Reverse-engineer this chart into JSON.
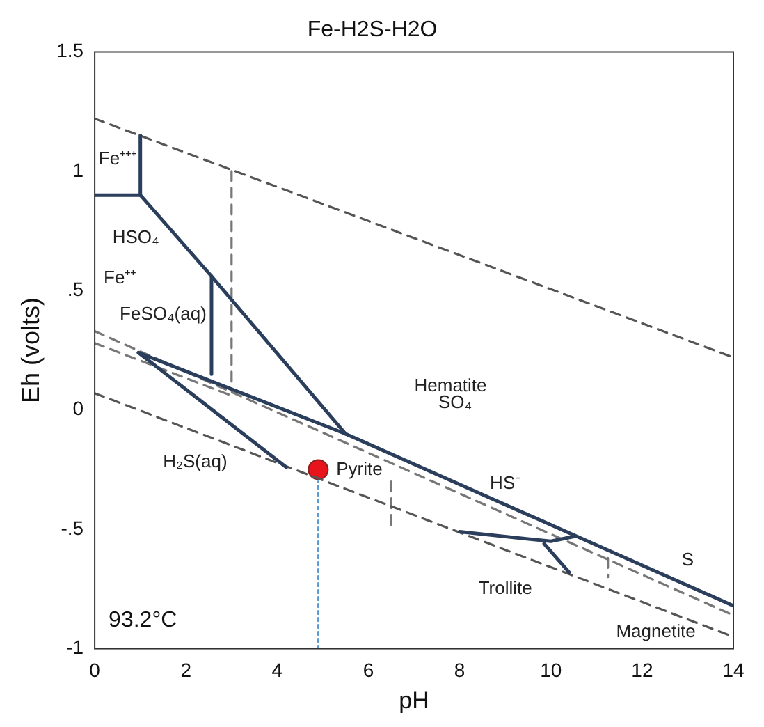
{
  "chart_data": {
    "type": "line",
    "title": "Fe-H2S-H2O",
    "xlabel": "pH",
    "ylabel": "Eh (volts)",
    "xlim": [
      0,
      14
    ],
    "xticks": [
      0,
      2,
      4,
      6,
      8,
      10,
      12,
      14
    ],
    "ylim": [
      -1,
      1.5
    ],
    "yticks": [
      -1,
      {
        "value": -0.5,
        "label": "-.5"
      },
      0,
      {
        "value": 0.5,
        "label": ".5"
      },
      1,
      1.5
    ],
    "grid": false,
    "legend": false,
    "series": [
      {
        "color": "#2b3e5c",
        "line_style": "solid",
        "marker": "none",
        "x": [
          0,
          1,
          1
        ],
        "values": [
          0.9,
          0.9,
          1.15
        ]
      },
      {
        "color": "#2b3e5c",
        "line_style": "solid",
        "marker": "none",
        "x": [
          1,
          2.56,
          5.5
        ],
        "values": [
          0.9,
          0.56,
          -0.1
        ]
      },
      {
        "color": "#2b3e5c",
        "line_style": "solid",
        "marker": "none",
        "x": [
          2.56,
          2.56
        ],
        "values": [
          0.56,
          0.15
        ]
      },
      {
        "color": "#2b3e5c",
        "line_style": "solid",
        "marker": "none",
        "x": [
          0.96,
          5.5,
          14
        ],
        "values": [
          0.24,
          -0.1,
          -0.82
        ]
      },
      {
        "color": "#2b3e5c",
        "line_style": "solid",
        "marker": "none",
        "x": [
          0.96,
          4.2
        ],
        "values": [
          0.24,
          -0.24
        ]
      },
      {
        "color": "#2b3e5c",
        "line_style": "solid",
        "marker": "none",
        "x": [
          8,
          10,
          10.5
        ],
        "values": [
          -0.51,
          -0.55,
          -0.53
        ]
      },
      {
        "color": "#2b3e5c",
        "line_style": "solid",
        "marker": "none",
        "x": [
          9.85,
          10.4
        ],
        "values": [
          -0.56,
          -0.68
        ]
      },
      {
        "color": "#555555",
        "line_style": "dashed",
        "marker": "none",
        "x": [
          0,
          14
        ],
        "values": [
          1.22,
          0.22
        ]
      },
      {
        "color": "#555555",
        "line_style": "dashed",
        "marker": "none",
        "x": [
          0,
          14
        ],
        "values": [
          0.07,
          -0.95
        ]
      },
      {
        "color": "#777777",
        "line_style": "dashed",
        "marker": "none",
        "x": [
          0,
          14
        ],
        "values": [
          0.33,
          -0.86
        ]
      },
      {
        "color": "#777777",
        "line_style": "dashed",
        "marker": "none",
        "x": [
          0,
          3
        ],
        "values": [
          0.28,
          0.06
        ]
      },
      {
        "color": "#777777",
        "line_style": "dashed",
        "marker": "none",
        "x": [
          3,
          3
        ],
        "values": [
          1.0,
          0.08
        ]
      },
      {
        "color": "#777777",
        "line_style": "dashed",
        "marker": "none",
        "x": [
          6.5,
          6.5
        ],
        "values": [
          -0.3,
          -0.5
        ]
      },
      {
        "color": "#777777",
        "line_style": "dashed",
        "marker": "none",
        "x": [
          11.25,
          11.25
        ],
        "values": [
          -0.62,
          -0.7
        ]
      },
      {
        "color": "#5b9bd5",
        "line_style": "dotted",
        "marker": "none",
        "x": [
          4.9,
          4.9
        ],
        "values": [
          -1,
          -0.3
        ]
      },
      {
        "type": "scatter",
        "color": "#e8141c",
        "marker": "circle",
        "x": [
          4.9
        ],
        "values": [
          -0.25
        ]
      }
    ],
    "annotations": [
      "Fe⁺⁺⁺",
      "HSO₄",
      "Fe⁺⁺",
      "FeSO₄(aq)",
      "Hematite",
      "SO₄",
      "H₂S(aq)",
      "Pyrite",
      "HS⁻",
      "Trollite",
      "Magnetite",
      "S",
      "93.2°C"
    ]
  }
}
